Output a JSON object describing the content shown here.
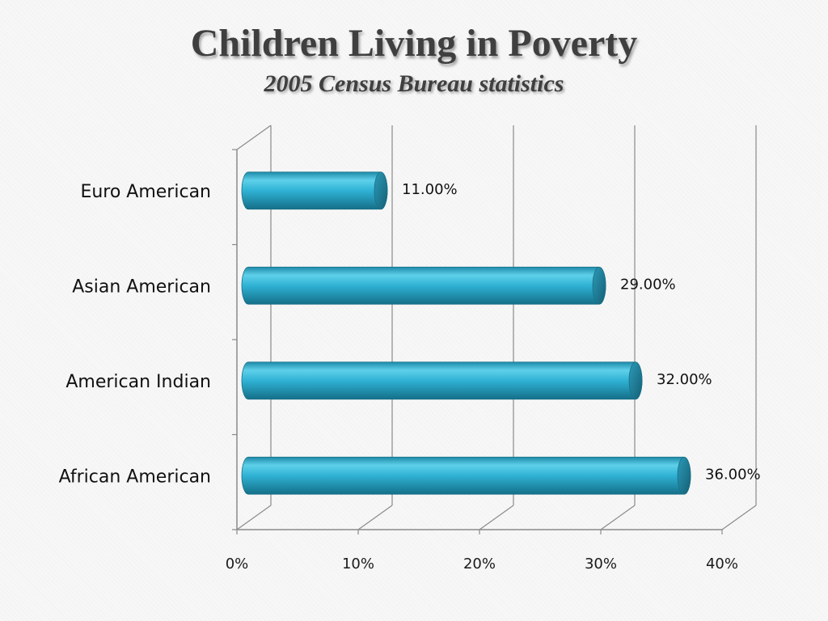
{
  "chart_data": {
    "type": "bar",
    "orientation": "horizontal",
    "style": "3d-cylinder",
    "title": "Children Living in Poverty",
    "subtitle": "2005 Census Bureau statistics",
    "categories": [
      "Euro American",
      "Asian American",
      "American Indian",
      "African American"
    ],
    "values": [
      11,
      29,
      32,
      36
    ],
    "data_labels": [
      "11.00%",
      "29.00%",
      "32.00%",
      "36.00%"
    ],
    "x_ticks": [
      "0%",
      "10%",
      "20%",
      "30%",
      "40%"
    ],
    "xlim": [
      0,
      40
    ],
    "grid": true,
    "legend": "none",
    "bar_color": "#2aa8c8"
  }
}
